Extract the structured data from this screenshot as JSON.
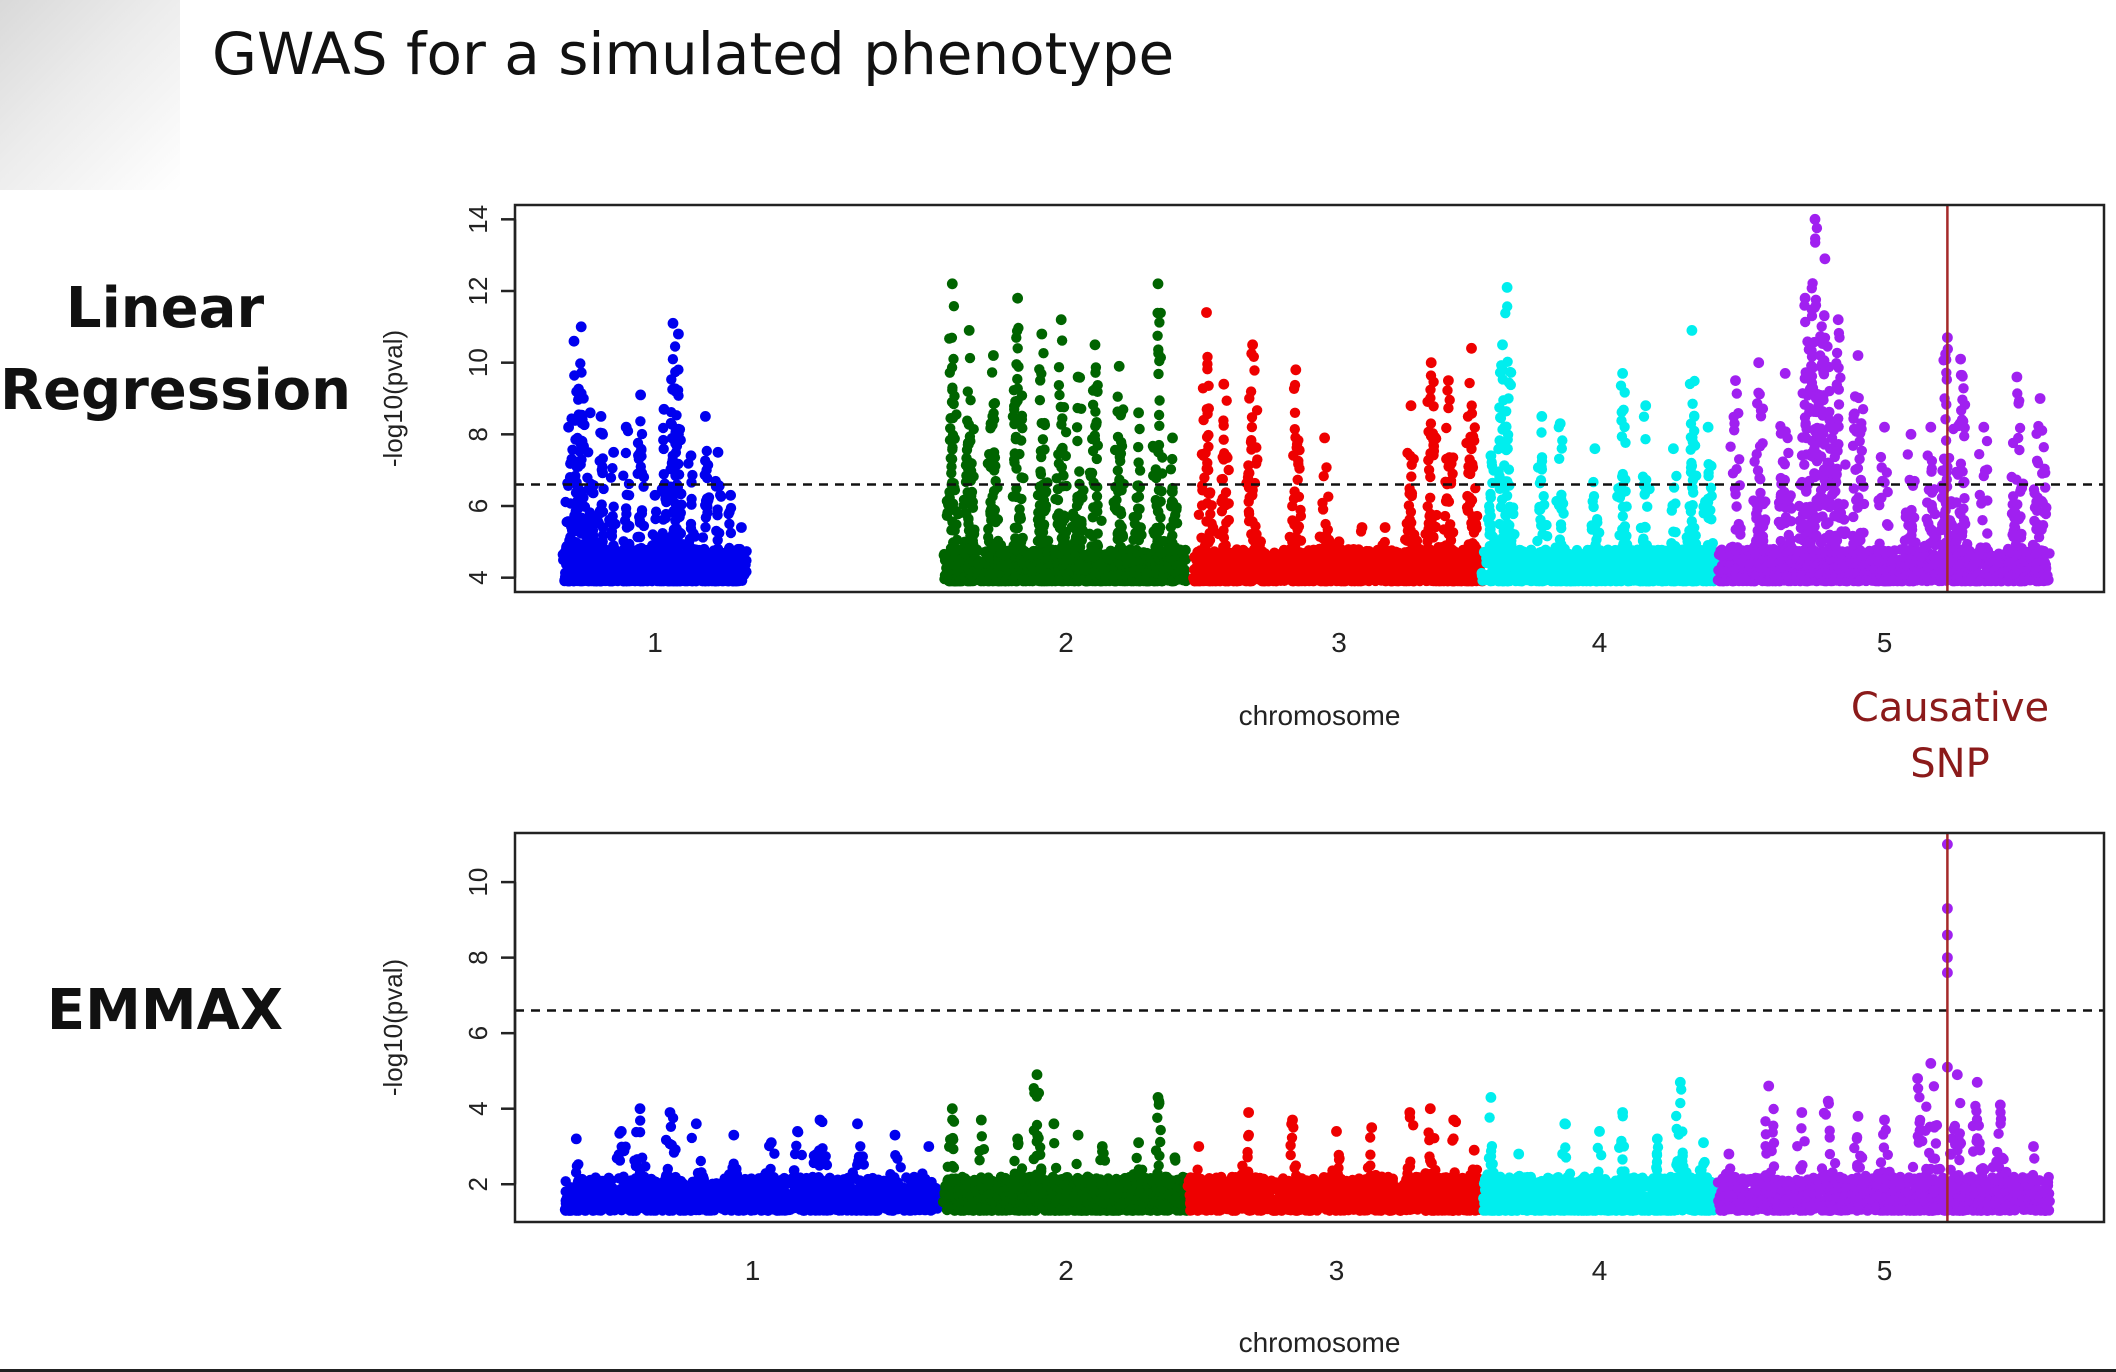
{
  "slide": {
    "title": "GWAS for a simulated phenotype",
    "method_labels": {
      "linear_regression": [
        "Linear",
        "Regression"
      ],
      "emmax": "EMMAX"
    },
    "annotation": [
      "Causative",
      "SNP"
    ]
  },
  "colors": {
    "chr1": "#0000ee",
    "chr2": "#006400",
    "chr3": "#ee0000",
    "chr4": "#00eeee",
    "chr5": "#a020f0",
    "causal_line": "#a52a2a",
    "annotation_text": "#8b1a1a"
  },
  "chart_data": [
    {
      "type": "scatter",
      "subtype": "manhattan",
      "title": "",
      "xlabel": "chromosome",
      "ylabel": "-log10(pval)",
      "categories": [
        "1",
        "2",
        "3",
        "4",
        "5"
      ],
      "ylim": [
        3.6,
        14.4
      ],
      "yticks": [
        4,
        6,
        8,
        10,
        12,
        14
      ],
      "threshold": 6.6,
      "causative_snp": {
        "chromosome": "5",
        "position_fraction": 0.69
      },
      "grid": false,
      "display_floor": 3.9,
      "chromosome_peaks": [
        {
          "chromosome": "1",
          "peaks": [
            [
              0.02,
              8.2
            ],
            [
              0.05,
              10.6
            ],
            [
              0.09,
              11.0
            ],
            [
              0.14,
              8.6
            ],
            [
              0.2,
              8.5
            ],
            [
              0.27,
              7.5
            ],
            [
              0.34,
              8.2
            ],
            [
              0.42,
              9.1
            ],
            [
              0.5,
              6.3
            ],
            [
              0.55,
              8.7
            ],
            [
              0.6,
              11.1
            ],
            [
              0.63,
              10.8
            ],
            [
              0.7,
              7.4
            ],
            [
              0.78,
              8.5
            ],
            [
              0.85,
              7.5
            ],
            [
              0.92,
              6.3
            ],
            [
              0.98,
              5.4
            ]
          ]
        },
        {
          "chromosome": "2",
          "peaks": [
            [
              0.03,
              12.2
            ],
            [
              0.1,
              10.9
            ],
            [
              0.2,
              10.2
            ],
            [
              0.3,
              11.8
            ],
            [
              0.4,
              10.8
            ],
            [
              0.48,
              11.2
            ],
            [
              0.55,
              9.6
            ],
            [
              0.62,
              10.5
            ],
            [
              0.72,
              9.9
            ],
            [
              0.8,
              8.6
            ],
            [
              0.88,
              12.2
            ],
            [
              0.94,
              7.9
            ]
          ]
        },
        {
          "chromosome": "3",
          "peaks": [
            [
              0.04,
              11.4
            ],
            [
              0.1,
              9.4
            ],
            [
              0.2,
              10.5
            ],
            [
              0.35,
              9.8
            ],
            [
              0.45,
              7.9
            ],
            [
              0.5,
              5.0
            ],
            [
              0.58,
              5.4
            ],
            [
              0.66,
              5.4
            ],
            [
              0.75,
              8.8
            ],
            [
              0.82,
              10.0
            ],
            [
              0.88,
              9.5
            ],
            [
              0.96,
              10.4
            ]
          ]
        },
        {
          "chromosome": "4",
          "peaks": [
            [
              0.03,
              7.4
            ],
            [
              0.08,
              10.5
            ],
            [
              0.1,
              12.1
            ],
            [
              0.25,
              8.5
            ],
            [
              0.33,
              8.3
            ],
            [
              0.48,
              7.6
            ],
            [
              0.6,
              9.7
            ],
            [
              0.7,
              8.8
            ],
            [
              0.82,
              7.6
            ],
            [
              0.9,
              10.9
            ],
            [
              0.97,
              8.2
            ]
          ]
        },
        {
          "chromosome": "5",
          "peaks": [
            [
              0.05,
              9.5
            ],
            [
              0.12,
              10.0
            ],
            [
              0.2,
              9.7
            ],
            [
              0.26,
              11.8
            ],
            [
              0.29,
              14.0
            ],
            [
              0.32,
              12.9
            ],
            [
              0.36,
              11.2
            ],
            [
              0.42,
              10.2
            ],
            [
              0.5,
              8.2
            ],
            [
              0.58,
              8.0
            ],
            [
              0.64,
              8.2
            ],
            [
              0.69,
              10.7
            ],
            [
              0.73,
              10.1
            ],
            [
              0.8,
              8.2
            ],
            [
              0.9,
              9.6
            ],
            [
              0.97,
              9.0
            ]
          ]
        }
      ]
    },
    {
      "type": "scatter",
      "subtype": "manhattan",
      "title": "",
      "xlabel": "chromosome",
      "ylabel": "-log10(pval)",
      "categories": [
        "1",
        "2",
        "3",
        "4",
        "5"
      ],
      "ylim": [
        1.0,
        11.3
      ],
      "yticks": [
        2,
        4,
        6,
        8,
        10
      ],
      "threshold": 6.6,
      "causative_snp": {
        "chromosome": "5",
        "position_fraction": 0.69
      },
      "causal_points": [
        11.0,
        9.3,
        8.6,
        8.0,
        7.6,
        5.1
      ],
      "grid": false,
      "display_floor": 1.3,
      "chromosome_peaks": [
        {
          "chromosome": "1",
          "peaks": [
            [
              0.03,
              3.2
            ],
            [
              0.15,
              3.4
            ],
            [
              0.2,
              4.0
            ],
            [
              0.28,
              3.9
            ],
            [
              0.35,
              3.6
            ],
            [
              0.45,
              3.3
            ],
            [
              0.55,
              3.1
            ],
            [
              0.62,
              3.4
            ],
            [
              0.68,
              3.7
            ],
            [
              0.78,
              3.6
            ],
            [
              0.88,
              3.3
            ],
            [
              0.97,
              3.0
            ]
          ]
        },
        {
          "chromosome": "2",
          "peaks": [
            [
              0.03,
              4.0
            ],
            [
              0.15,
              3.7
            ],
            [
              0.3,
              3.2
            ],
            [
              0.38,
              4.9
            ],
            [
              0.45,
              3.6
            ],
            [
              0.55,
              3.3
            ],
            [
              0.65,
              3.0
            ],
            [
              0.8,
              3.1
            ],
            [
              0.88,
              4.3
            ],
            [
              0.95,
              2.7
            ]
          ]
        },
        {
          "chromosome": "3",
          "peaks": [
            [
              0.03,
              3.0
            ],
            [
              0.2,
              3.9
            ],
            [
              0.35,
              3.7
            ],
            [
              0.5,
              3.4
            ],
            [
              0.62,
              3.5
            ],
            [
              0.75,
              3.9
            ],
            [
              0.82,
              4.0
            ],
            [
              0.9,
              3.7
            ],
            [
              0.97,
              2.9
            ]
          ]
        },
        {
          "chromosome": "4",
          "peaks": [
            [
              0.03,
              4.3
            ],
            [
              0.15,
              2.8
            ],
            [
              0.35,
              3.6
            ],
            [
              0.5,
              3.4
            ],
            [
              0.6,
              3.9
            ],
            [
              0.75,
              3.2
            ],
            [
              0.85,
              4.7
            ],
            [
              0.95,
              3.1
            ]
          ]
        },
        {
          "chromosome": "5",
          "peaks": [
            [
              0.03,
              2.8
            ],
            [
              0.15,
              4.6
            ],
            [
              0.25,
              3.9
            ],
            [
              0.33,
              4.2
            ],
            [
              0.42,
              3.8
            ],
            [
              0.5,
              3.7
            ],
            [
              0.6,
              4.8
            ],
            [
              0.64,
              5.2
            ],
            [
              0.72,
              4.9
            ],
            [
              0.78,
              4.7
            ],
            [
              0.85,
              4.1
            ],
            [
              0.95,
              3.0
            ]
          ]
        }
      ]
    }
  ]
}
